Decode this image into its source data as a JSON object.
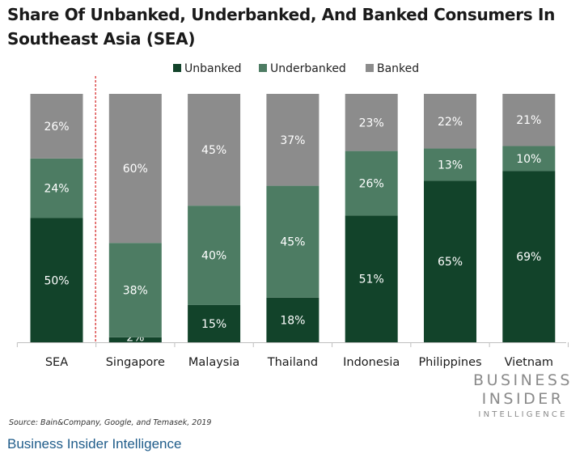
{
  "chart_data": {
    "type": "bar",
    "stacked": true,
    "title": "Share Of Unbanked, Underbanked, And Banked Consumers In Southeast Asia (SEA)",
    "categories": [
      "SEA",
      "Singapore",
      "Malaysia",
      "Thailand",
      "Indonesia",
      "Philippines",
      "Vietnam"
    ],
    "series": [
      {
        "name": "Unbanked",
        "values": [
          50,
          2,
          15,
          18,
          51,
          65,
          69
        ],
        "color": "#12432a"
      },
      {
        "name": "Underbanked",
        "values": [
          24,
          38,
          40,
          45,
          26,
          13,
          10
        ],
        "color": "#4d7c63"
      },
      {
        "name": "Banked",
        "values": [
          26,
          60,
          45,
          37,
          23,
          22,
          21
        ],
        "color": "#8c8c8c"
      }
    ],
    "value_suffix": "%",
    "ylim": [
      0,
      100
    ],
    "legend_position": "top",
    "divider_after_category": 0,
    "divider_color": "#d42020",
    "grid": false
  },
  "branding": {
    "line1": "BUSINESS",
    "line2": "INSIDER",
    "line3": "INTELLIGENCE"
  },
  "source": "Source: Bain&Company, Google, and Temasek, 2019",
  "footer": "Business Insider Intelligence"
}
